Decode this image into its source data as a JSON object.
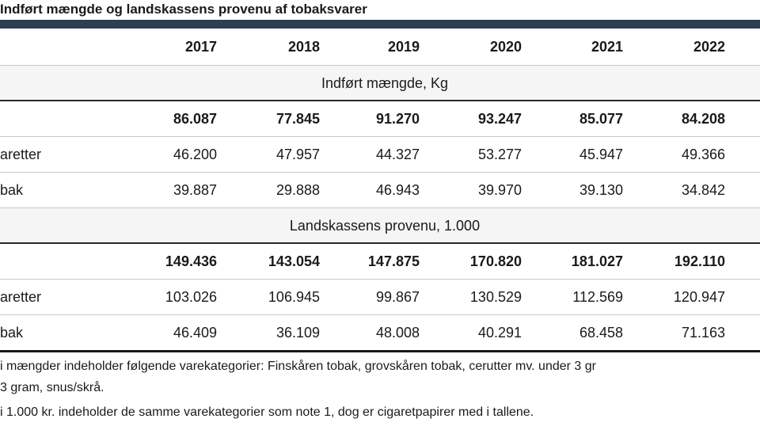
{
  "title": "Indført mængde og landskassens provenu af tobaksvarer",
  "years": [
    "2017",
    "2018",
    "2019",
    "2020",
    "2021",
    "2022"
  ],
  "sections": [
    {
      "heading": "Indført mængde, Kg",
      "rows": [
        {
          "label": "",
          "values": [
            "86.087",
            "77.845",
            "91.270",
            "93.247",
            "85.077",
            "84.208"
          ]
        },
        {
          "label": "aretter",
          "values": [
            "46.200",
            "47.957",
            "44.327",
            "53.277",
            "45.947",
            "49.366"
          ]
        },
        {
          "label": "bak",
          "values": [
            "39.887",
            "29.888",
            "46.943",
            "39.970",
            "39.130",
            "34.842"
          ]
        }
      ]
    },
    {
      "heading": "Landskassens provenu, 1.000",
      "rows": [
        {
          "label": "",
          "values": [
            "149.436",
            "143.054",
            "147.875",
            "170.820",
            "181.027",
            "192.110"
          ]
        },
        {
          "label": "aretter",
          "values": [
            "103.026",
            "106.945",
            "99.867",
            "130.529",
            "112.569",
            "120.947"
          ]
        },
        {
          "label": "bak",
          "values": [
            "46.409",
            "36.109",
            "48.008",
            "40.291",
            "68.458",
            "71.163"
          ]
        }
      ]
    }
  ],
  "footnotes": [
    "i mængder indeholder følgende varekategorier: Finskåren tobak, grovskåren tobak, cerutter mv. under 3 gr",
    "3 gram, snus/skrå.",
    "i 1.000 kr. indeholder de samme varekategorier som note 1, dog er cigaretpapirer med i tallene."
  ]
}
